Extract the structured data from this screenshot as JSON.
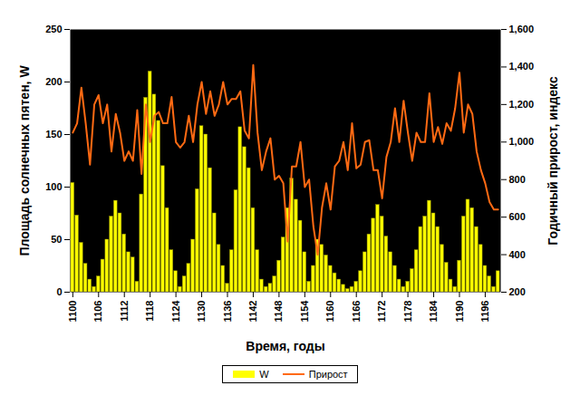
{
  "chart_data": {
    "type": "bar",
    "xlabel": "Время, годы",
    "ylabel": "Площадь солнечных пятен, W",
    "y2label": "Годичный прирост, индекс",
    "categories": [
      "1100",
      null,
      null,
      null,
      null,
      null,
      "1106",
      null,
      null,
      null,
      null,
      null,
      "1112",
      null,
      null,
      null,
      null,
      null,
      "1118",
      null,
      null,
      null,
      null,
      null,
      "1124",
      null,
      null,
      null,
      null,
      null,
      "1130",
      null,
      null,
      null,
      null,
      null,
      "1136",
      null,
      null,
      null,
      null,
      null,
      "1142",
      null,
      null,
      null,
      null,
      null,
      "1148",
      null,
      null,
      null,
      null,
      null,
      "1154",
      null,
      null,
      null,
      null,
      null,
      "1160",
      null,
      null,
      null,
      null,
      null,
      "1166",
      null,
      null,
      null,
      null,
      null,
      "1172",
      null,
      null,
      null,
      null,
      null,
      "1178",
      null,
      null,
      null,
      null,
      null,
      "1184",
      null,
      null,
      null,
      null,
      null,
      "1190",
      null,
      null,
      null,
      null,
      null,
      "1196",
      null,
      null,
      null
    ],
    "series": [
      {
        "name": "W",
        "type": "bar",
        "color": "#ffff00",
        "values": [
          104,
          73,
          47,
          27,
          12,
          5,
          15,
          31,
          50,
          72,
          87,
          75,
          55,
          38,
          33,
          10,
          93,
          185,
          210,
          188,
          163,
          120,
          80,
          40,
          20,
          5,
          15,
          27,
          50,
          98,
          158,
          150,
          118,
          75,
          45,
          25,
          8,
          40,
          97,
          157,
          138,
          118,
          80,
          40,
          12,
          5,
          8,
          15,
          30,
          52,
          80,
          108,
          88,
          68,
          38,
          10,
          25,
          50,
          45,
          35,
          25,
          18,
          12,
          7,
          3,
          5,
          10,
          20,
          38,
          55,
          70,
          83,
          72,
          53,
          38,
          25,
          12,
          5,
          10,
          22,
          40,
          62,
          72,
          87,
          75,
          62,
          45,
          28,
          12,
          5,
          30,
          72,
          88,
          80,
          62,
          45,
          25,
          15,
          5,
          20
        ]
      },
      {
        "name": "Прирост",
        "type": "line",
        "color": "#ff6a13",
        "axis": "y2",
        "values": [
          1050,
          1100,
          1290,
          1100,
          880,
          1200,
          1250,
          1100,
          1200,
          950,
          1150,
          1050,
          900,
          950,
          900,
          1170,
          830,
          1200,
          1000,
          1140,
          1160,
          1100,
          1100,
          1240,
          1000,
          970,
          1000,
          1140,
          1000,
          1200,
          1320,
          1150,
          1270,
          1140,
          1200,
          1320,
          1200,
          1230,
          1230,
          1270,
          1060,
          1020,
          1410,
          1050,
          850,
          950,
          1020,
          800,
          820,
          780,
          470,
          870,
          870,
          1000,
          760,
          800,
          550,
          400,
          650,
          780,
          640,
          870,
          900,
          1000,
          850,
          1100,
          860,
          880,
          1000,
          1010,
          850,
          850,
          700,
          920,
          1000,
          1180,
          1000,
          1220,
          1050,
          900,
          1050,
          1000,
          1000,
          1260,
          1000,
          1080,
          990,
          1100,
          1060,
          1180,
          1370,
          1050,
          1200,
          1150,
          950,
          850,
          780,
          680,
          640,
          640
        ]
      }
    ],
    "ylim": [
      0,
      250
    ],
    "yticks": [
      0,
      50,
      100,
      150,
      200,
      250
    ],
    "y2lim": [
      200,
      1600
    ],
    "y2ticks": [
      200,
      400,
      600,
      800,
      1000,
      1200,
      1400,
      1600
    ],
    "legend": "bottom"
  }
}
